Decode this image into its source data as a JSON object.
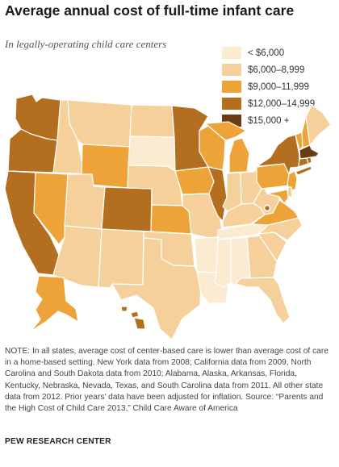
{
  "title": "Average annual cost of full-time infant care",
  "subtitle": "In legally-operating child care centers",
  "legend": [
    {
      "label": "< $6,000",
      "color": "#fbebd0"
    },
    {
      "label": "$6,000–8,999",
      "color": "#f6d09b"
    },
    {
      "label": "$9,000–11,999",
      "color": "#eda338"
    },
    {
      "label": "$12,000–14,999",
      "color": "#b36e20"
    },
    {
      "label": "$15,000 +",
      "color": "#6a3c10"
    }
  ],
  "states": {
    "WA": 3,
    "OR": 3,
    "CA": 3,
    "NV": 2,
    "ID": 1,
    "MT": 1,
    "WY": 2,
    "UT": 1,
    "AZ": 1,
    "CO": 3,
    "NM": 1,
    "ND": 1,
    "SD": 0,
    "NE": 1,
    "KS": 2,
    "OK": 1,
    "TX": 1,
    "MN": 3,
    "IA": 2,
    "MO": 1,
    "AR": 0,
    "LA": 0,
    "WI": 2,
    "IL": 3,
    "MI": 2,
    "IN": 1,
    "OH": 1,
    "KY": 1,
    "TN": 0,
    "MS": 0,
    "AL": 0,
    "GA": 1,
    "FL": 1,
    "SC": 1,
    "NC": 1,
    "VA": 2,
    "WV": 1,
    "PA": 2,
    "NY": 3,
    "VT": 2,
    "NH": 2,
    "ME": 1,
    "MA": 4,
    "RI": 3,
    "CT": 3,
    "NJ": 2,
    "DE": 1,
    "MD": 2,
    "DC": 3,
    "AK": 2,
    "HI": 3
  },
  "note": "NOTE: In all states, average cost of center-based care is lower than average cost of care in a home-based setting. New York data from 2008; California data from 2009, North Carolina and South Dakota data from 2010; Alabama, Alaska, Arkansas, Florida, Kentucky, Nebraska, Nevada, Texas, and South Carolina data from 2011. All other state data from 2012. Prior years’ data have been adjusted for inflation. Source: “Parents and the High Cost of Child Care 2013,” Child Care Aware of America",
  "source_label": "PEW RESEARCH CENTER"
}
